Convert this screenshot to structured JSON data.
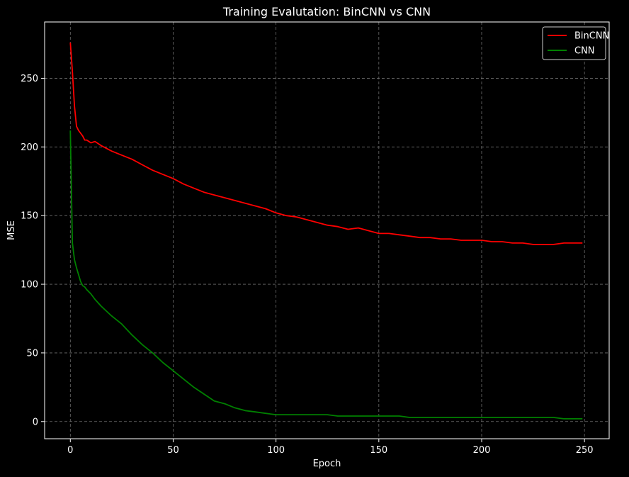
{
  "chart_data": {
    "type": "line",
    "title": "Training Evalutation: BinCNN vs CNN",
    "xlabel": "Epoch",
    "ylabel": "MSE",
    "xlim": [
      -12.5,
      262
    ],
    "ylim": [
      -12.5,
      291
    ],
    "xticks": [
      0,
      50,
      100,
      150,
      200,
      250
    ],
    "yticks": [
      0,
      50,
      100,
      150,
      200,
      250
    ],
    "grid": true,
    "legend_position": "top-right",
    "background": "#000000",
    "series": [
      {
        "name": "BinCNN",
        "color": "#ff0000",
        "x": [
          0,
          1,
          2,
          3,
          4,
          5,
          6,
          7,
          8,
          10,
          12,
          15,
          20,
          25,
          30,
          35,
          40,
          45,
          50,
          55,
          60,
          65,
          70,
          75,
          80,
          85,
          90,
          95,
          100,
          105,
          110,
          115,
          120,
          125,
          130,
          135,
          140,
          145,
          150,
          155,
          160,
          165,
          170,
          175,
          180,
          185,
          190,
          195,
          200,
          205,
          210,
          215,
          220,
          225,
          230,
          235,
          240,
          245,
          249
        ],
        "values": [
          276,
          255,
          230,
          215,
          212,
          210,
          208,
          205,
          205,
          203,
          204,
          201,
          197,
          194,
          191,
          187,
          183,
          180,
          177,
          173,
          170,
          167,
          165,
          163,
          161,
          159,
          157,
          155,
          152,
          150,
          149,
          147,
          145,
          143,
          142,
          140,
          141,
          139,
          137,
          137,
          136,
          135,
          134,
          134,
          133,
          133,
          132,
          132,
          132,
          131,
          131,
          130,
          130,
          129,
          129,
          129,
          130,
          130,
          130
        ]
      },
      {
        "name": "CNN",
        "color": "#008000",
        "x": [
          0,
          1,
          2,
          3,
          4,
          5,
          6,
          7,
          8,
          10,
          12,
          15,
          20,
          25,
          30,
          35,
          40,
          45,
          50,
          55,
          60,
          65,
          70,
          75,
          80,
          85,
          90,
          95,
          100,
          105,
          110,
          115,
          120,
          125,
          130,
          135,
          140,
          145,
          150,
          155,
          160,
          165,
          170,
          175,
          180,
          185,
          190,
          195,
          200,
          205,
          210,
          215,
          220,
          225,
          230,
          235,
          240,
          245,
          249
        ],
        "values": [
          212,
          130,
          118,
          112,
          107,
          102,
          99,
          98,
          96,
          93,
          89,
          84,
          77,
          71,
          63,
          56,
          50,
          43,
          37,
          31,
          25,
          20,
          15,
          13,
          10,
          8,
          7,
          6,
          5,
          5,
          5,
          5,
          5,
          5,
          4,
          4,
          4,
          4,
          4,
          4,
          4,
          3,
          3,
          3,
          3,
          3,
          3,
          3,
          3,
          3,
          3,
          3,
          3,
          3,
          3,
          3,
          2,
          2,
          2
        ]
      }
    ]
  }
}
